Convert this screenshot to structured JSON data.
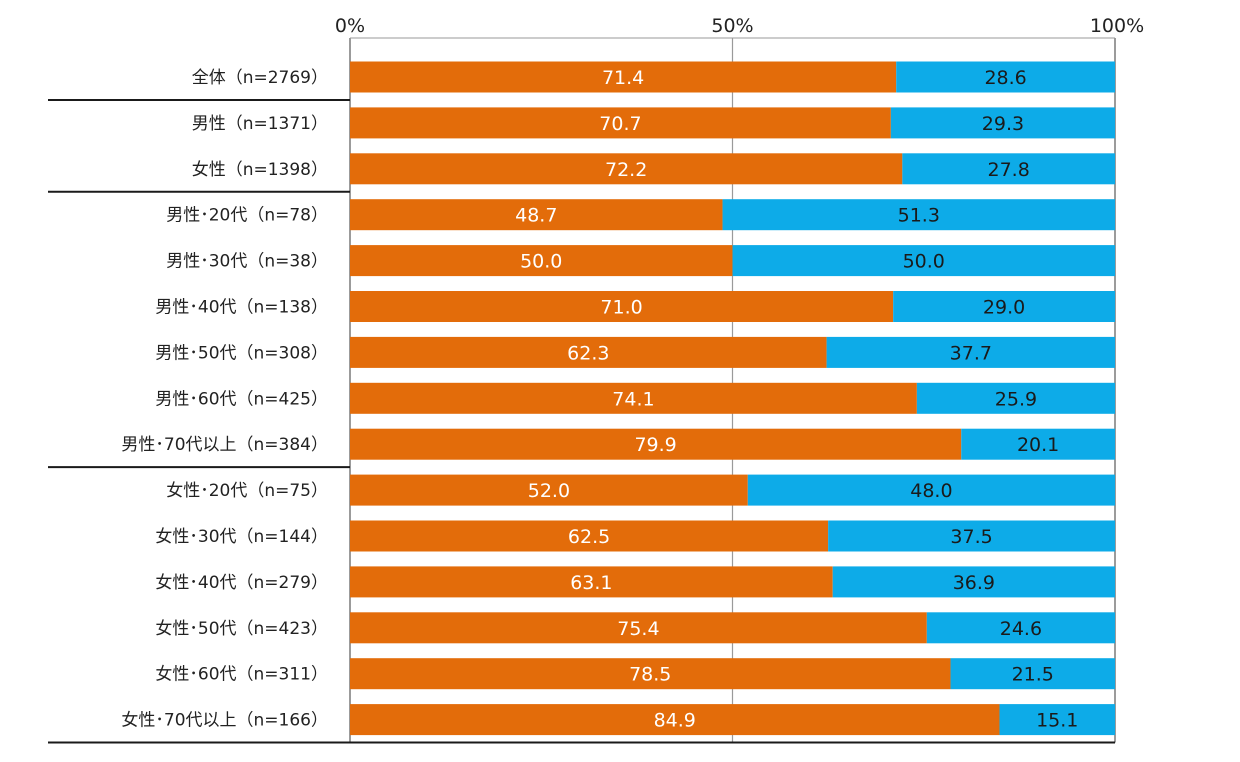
{
  "chart_data": {
    "type": "bar",
    "orientation": "horizontal",
    "stacked": true,
    "percent_stacked": true,
    "title": "",
    "xlabel": "",
    "ylabel": "",
    "xlim": [
      0,
      100
    ],
    "ticks": [
      {
        "value": 0,
        "label": "0%"
      },
      {
        "value": 50,
        "label": "50%"
      },
      {
        "value": 100,
        "label": "100%"
      }
    ],
    "gridlines": "vertical at 50%",
    "legend": "none",
    "categories": [
      "全体（n=2769）",
      "男性（n=1371）",
      "女性（n=1398）",
      "男性･20代（n=78）",
      "男性･30代（n=38）",
      "男性･40代（n=138）",
      "男性･50代（n=308）",
      "男性･60代（n=425）",
      "男性･70代以上（n=384）",
      "女性･20代（n=75）",
      "女性･30代（n=144）",
      "女性･40代（n=279）",
      "女性･50代（n=423）",
      "女性･60代（n=311）",
      "女性･70代以上（n=166）"
    ],
    "group_separators_after": [
      0,
      2,
      8,
      14
    ],
    "series": [
      {
        "name": "series-1",
        "color": "#e36c0a",
        "values": [
          71.4,
          70.7,
          72.2,
          48.7,
          50.0,
          71.0,
          62.3,
          74.1,
          79.9,
          52.0,
          62.5,
          63.1,
          75.4,
          78.5,
          84.9
        ],
        "labels": [
          "71.4",
          "70.7",
          "72.2",
          "48.7",
          "50.0",
          "71.0",
          "62.3",
          "74.1",
          "79.9",
          "52.0",
          "62.5",
          "63.1",
          "75.4",
          "78.5",
          "84.9"
        ]
      },
      {
        "name": "series-2",
        "color": "#0dabe8",
        "values": [
          28.6,
          29.3,
          27.8,
          51.3,
          50.0,
          29.0,
          37.7,
          25.9,
          20.1,
          48.0,
          37.5,
          36.9,
          24.6,
          21.5,
          15.1
        ],
        "labels": [
          "28.6",
          "29.3",
          "27.8",
          "51.3",
          "50.0",
          "29.0",
          "37.7",
          "25.9",
          "20.1",
          "48.0",
          "37.5",
          "36.9",
          "24.6",
          "21.5",
          "15.1"
        ]
      }
    ]
  }
}
